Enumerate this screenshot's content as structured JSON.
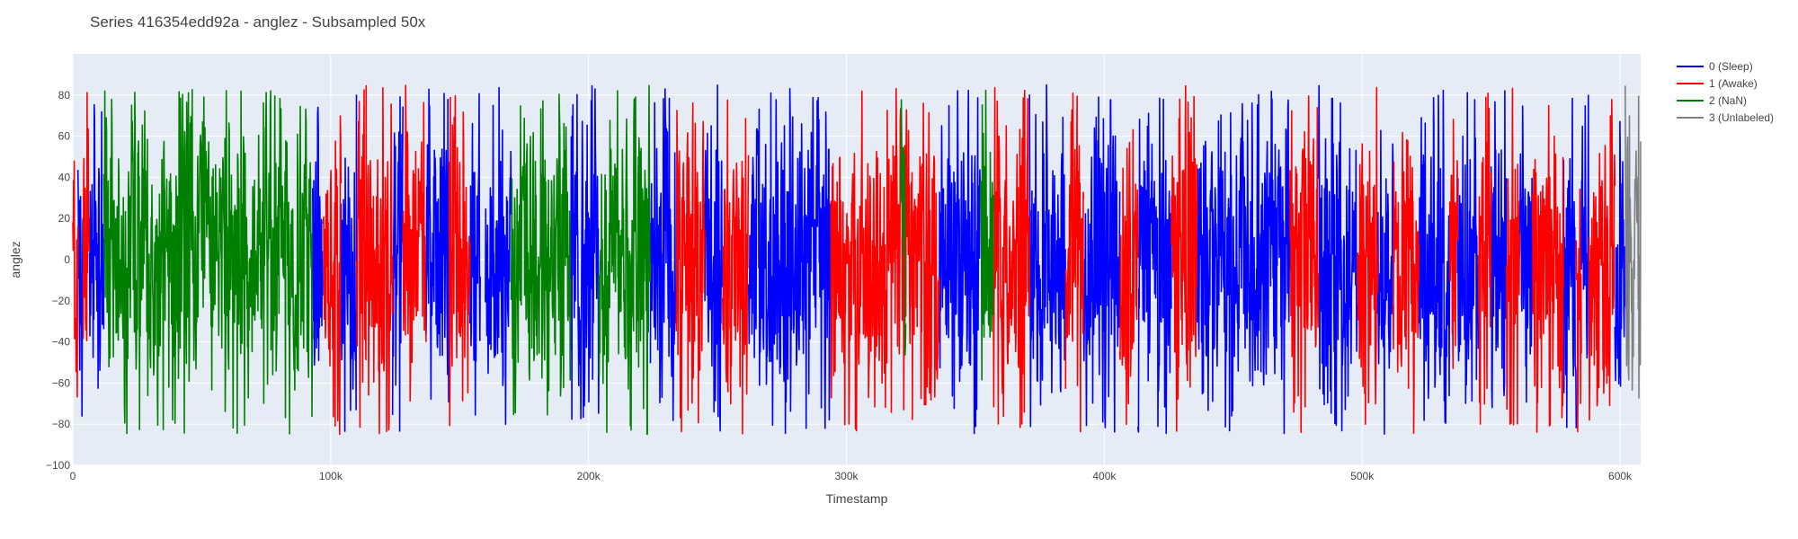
{
  "chart_data": {
    "type": "line",
    "title": "Series 416354edd92a - anglez - Subsampled 50x",
    "xlabel": "Timestamp",
    "ylabel": "anglez",
    "xlim": [
      0,
      608000
    ],
    "ylim": [
      -100,
      100
    ],
    "x_ticks": [
      {
        "value": 0,
        "label": "0"
      },
      {
        "value": 100000,
        "label": "100k"
      },
      {
        "value": 200000,
        "label": "200k"
      },
      {
        "value": 300000,
        "label": "300k"
      },
      {
        "value": 400000,
        "label": "400k"
      },
      {
        "value": 500000,
        "label": "500k"
      },
      {
        "value": 600000,
        "label": "600k"
      }
    ],
    "y_ticks": [
      {
        "value": 80,
        "label": "80"
      },
      {
        "value": 60,
        "label": "60"
      },
      {
        "value": 40,
        "label": "40"
      },
      {
        "value": 20,
        "label": "20"
      },
      {
        "value": 0,
        "label": "0"
      },
      {
        "value": -20,
        "label": "−20"
      },
      {
        "value": -40,
        "label": "−40"
      },
      {
        "value": -60,
        "label": "−60"
      },
      {
        "value": -80,
        "label": "−80"
      },
      {
        "value": -100,
        "label": "−100"
      }
    ],
    "grid": true,
    "plot_background": "#e5ecf6",
    "legend_position": "top-right",
    "series": [
      {
        "name": "0 (Sleep)",
        "color": "#0000ff",
        "segments": [
          [
            2000,
            4000
          ],
          [
            6500,
            12000
          ],
          [
            93000,
            97000
          ],
          [
            104000,
            110000
          ],
          [
            124000,
            128000
          ],
          [
            137000,
            146000
          ],
          [
            154000,
            158000
          ],
          [
            160000,
            170000
          ],
          [
            193000,
            204000
          ],
          [
            224000,
            234000
          ],
          [
            245000,
            252000
          ],
          [
            262000,
            294000
          ],
          [
            336000,
            352000
          ],
          [
            371000,
            385000
          ],
          [
            392000,
            406000
          ],
          [
            413000,
            426000
          ],
          [
            436000,
            472000
          ],
          [
            483000,
            498000
          ],
          [
            506000,
            512000
          ],
          [
            522000,
            534000
          ],
          [
            537000,
            545000
          ],
          [
            550000,
            556000
          ],
          [
            561000,
            566000
          ],
          [
            578000,
            583000
          ],
          [
            585000,
            588000
          ],
          [
            598000,
            602000
          ]
        ]
      },
      {
        "name": "1 (Awake)",
        "color": "#ff0000",
        "segments": [
          [
            0,
            2000
          ],
          [
            4000,
            6500
          ],
          [
            97000,
            104000
          ],
          [
            110000,
            124000
          ],
          [
            128000,
            137000
          ],
          [
            146000,
            154000
          ],
          [
            234000,
            245000
          ],
          [
            252000,
            262000
          ],
          [
            294000,
            336000
          ],
          [
            357000,
            371000
          ],
          [
            385000,
            392000
          ],
          [
            406000,
            413000
          ],
          [
            426000,
            436000
          ],
          [
            472000,
            483000
          ],
          [
            498000,
            506000
          ],
          [
            512000,
            522000
          ],
          [
            534000,
            537000
          ],
          [
            545000,
            550000
          ],
          [
            556000,
            561000
          ],
          [
            566000,
            578000
          ],
          [
            583000,
            585000
          ],
          [
            588000,
            598000
          ]
        ]
      },
      {
        "name": "2 (NaN)",
        "color": "#008000",
        "segments": [
          [
            12000,
            93000
          ],
          [
            170000,
            193000
          ],
          [
            204000,
            224000
          ],
          [
            321000,
            323000
          ],
          [
            352000,
            357000
          ]
        ]
      },
      {
        "name": "3 (Unlabeled)",
        "color": "#808080",
        "segments": [
          [
            602000,
            608000
          ]
        ]
      }
    ],
    "samples_per_kilostep": 0.75,
    "noise_seed": 20240521
  }
}
